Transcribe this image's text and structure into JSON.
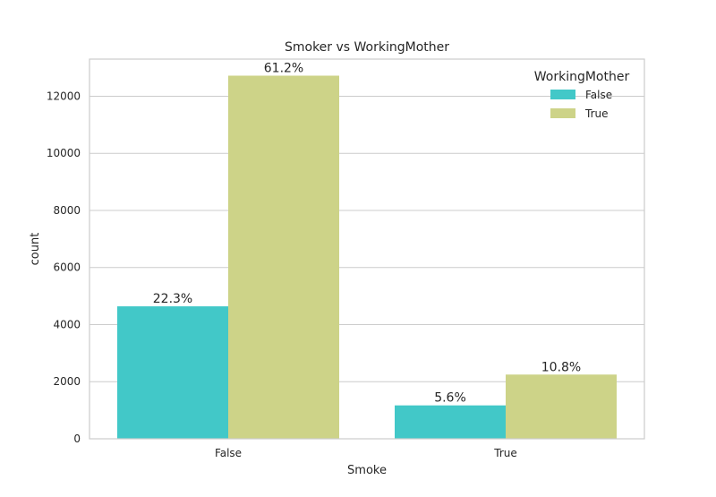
{
  "chart_data": {
    "type": "bar",
    "title": "Smoker vs WorkingMother",
    "xlabel": "Smoke",
    "ylabel": "count",
    "categories": [
      "False",
      "True"
    ],
    "ylim": [
      0,
      13300
    ],
    "yticks": [
      0,
      2000,
      4000,
      6000,
      8000,
      10000,
      12000
    ],
    "grid": true,
    "legend": {
      "title": "WorkingMother",
      "placement": "top-right"
    },
    "series": [
      {
        "name": "False",
        "color": "#42c8c8",
        "values": [
          4640,
          1170
        ],
        "labels": [
          "22.3%",
          "5.6%"
        ]
      },
      {
        "name": "True",
        "color": "#cdd388",
        "values": [
          12720,
          2250
        ],
        "labels": [
          "61.2%",
          "10.8%"
        ]
      }
    ]
  }
}
